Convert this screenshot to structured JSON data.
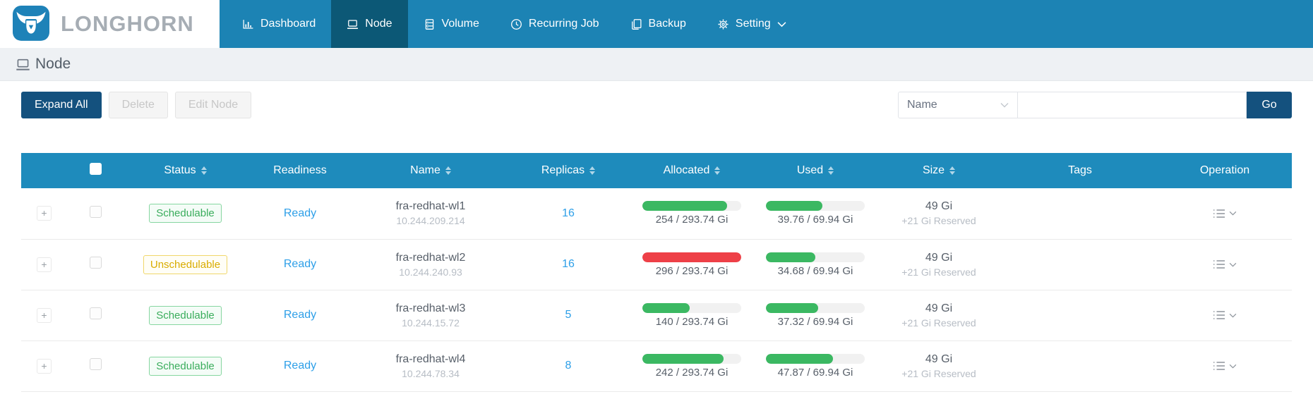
{
  "brand": {
    "name": "LONGHORN"
  },
  "nav": {
    "items": [
      {
        "label": "Dashboard",
        "icon": "dashboard-icon",
        "active": false
      },
      {
        "label": "Node",
        "icon": "node-icon",
        "active": true
      },
      {
        "label": "Volume",
        "icon": "volume-icon",
        "active": false
      },
      {
        "label": "Recurring Job",
        "icon": "recurring-job-icon",
        "active": false
      },
      {
        "label": "Backup",
        "icon": "backup-icon",
        "active": false
      },
      {
        "label": "Setting",
        "icon": "setting-icon",
        "active": false,
        "has_dropdown": true
      }
    ]
  },
  "breadcrumb": {
    "title": "Node"
  },
  "toolbar": {
    "expand_all_label": "Expand All",
    "delete_label": "Delete",
    "edit_node_label": "Edit Node",
    "filter_field": "Name",
    "search_value": "",
    "go_label": "Go"
  },
  "table": {
    "expand_symbol": "+",
    "columns": [
      {
        "label": "Status",
        "sortable": true
      },
      {
        "label": "Readiness",
        "sortable": false
      },
      {
        "label": "Name",
        "sortable": true
      },
      {
        "label": "Replicas",
        "sortable": true
      },
      {
        "label": "Allocated",
        "sortable": true
      },
      {
        "label": "Used",
        "sortable": true
      },
      {
        "label": "Size",
        "sortable": true
      },
      {
        "label": "Tags",
        "sortable": false
      },
      {
        "label": "Operation",
        "sortable": false
      }
    ],
    "rows": [
      {
        "status": "Schedulable",
        "status_type": "green",
        "readiness": "Ready",
        "name": "fra-redhat-wl1",
        "ip": "10.244.209.214",
        "replicas": "16",
        "allocated": {
          "percent": 86,
          "label": "254 / 293.74 Gi",
          "color": "green"
        },
        "used": {
          "percent": 57,
          "label": "39.76 / 69.94 Gi",
          "color": "green"
        },
        "size": "49 Gi",
        "size_reserved": "+21 Gi Reserved",
        "tags": ""
      },
      {
        "status": "Unschedulable",
        "status_type": "gold",
        "readiness": "Ready",
        "name": "fra-redhat-wl2",
        "ip": "10.244.240.93",
        "replicas": "16",
        "allocated": {
          "percent": 100,
          "label": "296 / 293.74 Gi",
          "color": "red"
        },
        "used": {
          "percent": 50,
          "label": "34.68 / 69.94 Gi",
          "color": "green"
        },
        "size": "49 Gi",
        "size_reserved": "+21 Gi Reserved",
        "tags": ""
      },
      {
        "status": "Schedulable",
        "status_type": "green",
        "readiness": "Ready",
        "name": "fra-redhat-wl3",
        "ip": "10.244.15.72",
        "replicas": "5",
        "allocated": {
          "percent": 48,
          "label": "140 / 293.74 Gi",
          "color": "green"
        },
        "used": {
          "percent": 53,
          "label": "37.32 / 69.94 Gi",
          "color": "green"
        },
        "size": "49 Gi",
        "size_reserved": "+21 Gi Reserved",
        "tags": ""
      },
      {
        "status": "Schedulable",
        "status_type": "green",
        "readiness": "Ready",
        "name": "fra-redhat-wl4",
        "ip": "10.244.78.34",
        "replicas": "8",
        "allocated": {
          "percent": 82,
          "label": "242 / 293.74 Gi",
          "color": "green"
        },
        "used": {
          "percent": 68,
          "label": "47.87 / 69.94 Gi",
          "color": "green"
        },
        "size": "49 Gi",
        "size_reserved": "+21 Gi Reserved",
        "tags": ""
      }
    ]
  },
  "colors": {
    "navbar_teal": "#1c83b4",
    "nav_active": "#0c5876",
    "header_teal": "#1e8bbc",
    "accent_navy": "#14517e",
    "progress_green": "#3bb862",
    "progress_red": "#ee4047",
    "link_blue": "#2d9fe8",
    "status_green": "#3aad5c",
    "status_gold": "#d9ac00"
  }
}
